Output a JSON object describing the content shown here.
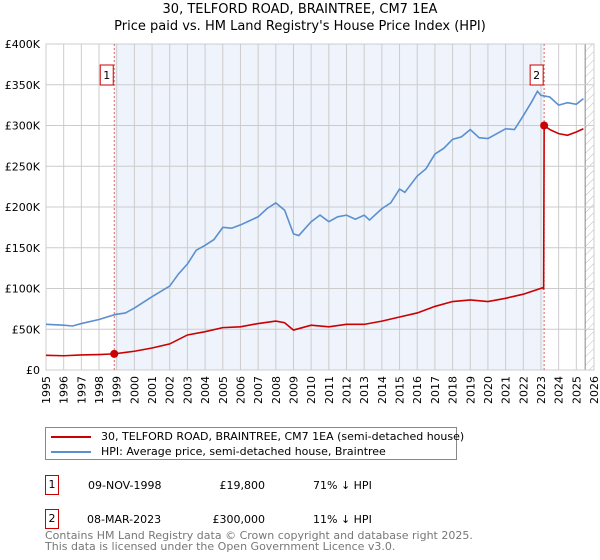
{
  "chart_data": {
    "type": "line",
    "title": "30, TELFORD ROAD, BRAINTREE, CM7 1EA",
    "subtitle": "Price paid vs. HM Land Registry's House Price Index (HPI)",
    "xlim": [
      1995,
      2026
    ],
    "ylim": [
      0,
      400000
    ],
    "x_ticks": [
      "1995",
      "1996",
      "1997",
      "1998",
      "1999",
      "2000",
      "2001",
      "2002",
      "2003",
      "2004",
      "2005",
      "2006",
      "2007",
      "2008",
      "2009",
      "2010",
      "2011",
      "2012",
      "2013",
      "2014",
      "2015",
      "2016",
      "2017",
      "2018",
      "2019",
      "2020",
      "2021",
      "2022",
      "2023",
      "2024",
      "2025",
      "2026"
    ],
    "y_ticks": [
      "£0",
      "£50K",
      "£100K",
      "£150K",
      "£200K",
      "£250K",
      "£300K",
      "£350K",
      "£400K"
    ],
    "grid": true,
    "series": [
      {
        "name": "30, TELFORD ROAD, BRAINTREE, CM7 1EA (semi-detached house)",
        "color": "#cc0000",
        "x": [
          1995,
          1996,
          1997,
          1998,
          1998.86,
          2000,
          2001,
          2002,
          2003,
          2004,
          2005,
          2006,
          2007,
          2008,
          2008.5,
          2009,
          2010,
          2011,
          2012,
          2013,
          2014,
          2015,
          2016,
          2017,
          2018,
          2019,
          2020,
          2021,
          2022,
          2023.1,
          2023.15,
          2023.18,
          2023.5,
          2024,
          2024.5,
          2025,
          2025.4
        ],
        "y": [
          18000,
          17500,
          18500,
          19000,
          19800,
          23000,
          27000,
          32000,
          43000,
          47000,
          52000,
          53000,
          57000,
          60000,
          58000,
          49000,
          55000,
          53000,
          56000,
          56000,
          60000,
          65000,
          70000,
          78000,
          84000,
          86000,
          84000,
          88000,
          93000,
          101000,
          99000,
          300000,
          295000,
          290000,
          288000,
          292000,
          296000
        ]
      },
      {
        "name": "HPI: Average price, semi-detached house, Braintree",
        "color": "#5b8fd0",
        "x": [
          1995,
          1996,
          1996.5,
          1997,
          1998,
          1998.9,
          1999.5,
          2000,
          2001,
          2002,
          2002.5,
          2003,
          2003.5,
          2004,
          2004.5,
          2005,
          2005.5,
          2006,
          2006.5,
          2007,
          2007.5,
          2008,
          2008.5,
          2009,
          2009.3,
          2010,
          2010.5,
          2011,
          2011.5,
          2012,
          2012.5,
          2013,
          2013.3,
          2014,
          2014.5,
          2015,
          2015.3,
          2016,
          2016.5,
          2017,
          2017.5,
          2018,
          2018.5,
          2019,
          2019.5,
          2020,
          2020.5,
          2021,
          2021.5,
          2022,
          2022.5,
          2022.8,
          2023,
          2023.5,
          2024,
          2024.5,
          2025,
          2025.4
        ],
        "y": [
          56000,
          55000,
          54000,
          57000,
          62000,
          68000,
          70000,
          76000,
          90000,
          103000,
          118000,
          130000,
          147000,
          153000,
          160000,
          175000,
          174000,
          178000,
          183000,
          188000,
          198000,
          205000,
          196000,
          167000,
          165000,
          182000,
          190000,
          182000,
          188000,
          190000,
          185000,
          190000,
          184000,
          198000,
          205000,
          222000,
          218000,
          238000,
          247000,
          265000,
          272000,
          283000,
          286000,
          295000,
          285000,
          284000,
          290000,
          296000,
          295000,
          312000,
          330000,
          342000,
          337000,
          335000,
          325000,
          328000,
          326000,
          333000
        ]
      }
    ],
    "markers": [
      {
        "label": "1",
        "x": 1998.86,
        "y": 19800
      },
      {
        "label": "2",
        "x": 2023.18,
        "y": 300000
      }
    ],
    "shaded_range": [
      1998.86,
      2023.18
    ],
    "hatched_from": 2025.5
  },
  "table": [
    {
      "num": "1",
      "date": "09-NOV-1998",
      "price": "£19,800",
      "hpi": "71% ↓ HPI"
    },
    {
      "num": "2",
      "date": "08-MAR-2023",
      "price": "£300,000",
      "hpi": "11% ↓ HPI"
    }
  ],
  "footer": [
    "Contains HM Land Registry data © Crown copyright and database right 2025.",
    "This data is licensed under the Open Government Licence v3.0."
  ]
}
